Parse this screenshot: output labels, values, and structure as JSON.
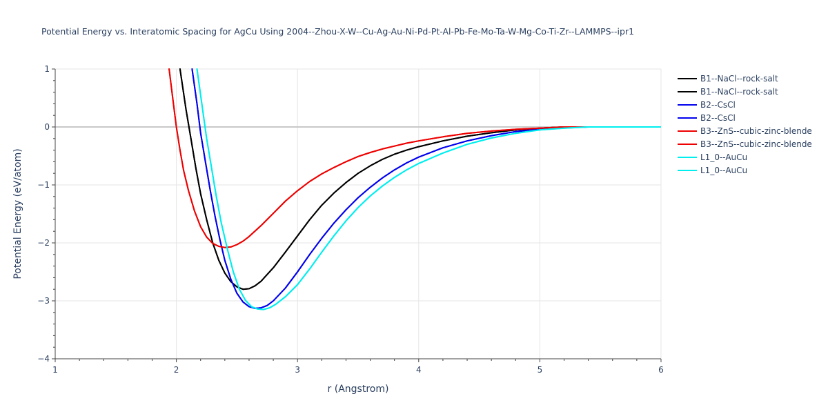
{
  "chart_data": {
    "type": "line",
    "title": "Potential Energy vs. Interatomic Spacing for AgCu Using 2004--Zhou-X-W--Cu-Ag-Au-Ni-Pd-Pt-Al-Pb-Fe-Mo-Ta-W-Mg-Co-Ti-Zr--LAMMPS--ipr1",
    "xlabel": "r (Angstrom)",
    "ylabel": "Potential Energy (eV/atom)",
    "xlim": [
      1,
      6
    ],
    "ylim": [
      -4,
      1
    ],
    "xticks": [
      1,
      2,
      3,
      4,
      5,
      6
    ],
    "yticks": [
      1,
      0,
      -1,
      -2,
      -3,
      -4
    ],
    "xtick_labels": [
      "1",
      "2",
      "3",
      "4",
      "5",
      "6"
    ],
    "ytick_labels": [
      "1",
      "0",
      "−1",
      "−2",
      "−3",
      "−4"
    ],
    "grid": true,
    "legend_position": "top-right",
    "series": [
      {
        "name": "B1--NaCl--rock-salt",
        "color": "#000000",
        "x": [
          2.03,
          2.08,
          2.12,
          2.16,
          2.2,
          2.25,
          2.3,
          2.35,
          2.4,
          2.45,
          2.5,
          2.55,
          2.6,
          2.65,
          2.7,
          2.8,
          2.9,
          3.0,
          3.1,
          3.2,
          3.3,
          3.4,
          3.5,
          3.6,
          3.7,
          3.8,
          3.9,
          4.0,
          4.2,
          4.4,
          4.6,
          4.8,
          5.0,
          5.2,
          5.4,
          5.6,
          6.0
        ],
        "y": [
          1.0,
          0.3,
          -0.2,
          -0.7,
          -1.15,
          -1.6,
          -2.0,
          -2.3,
          -2.52,
          -2.67,
          -2.76,
          -2.8,
          -2.79,
          -2.74,
          -2.66,
          -2.43,
          -2.16,
          -1.88,
          -1.6,
          -1.35,
          -1.14,
          -0.96,
          -0.8,
          -0.67,
          -0.56,
          -0.47,
          -0.4,
          -0.34,
          -0.24,
          -0.16,
          -0.1,
          -0.05,
          -0.02,
          0.0,
          0.0,
          0.0,
          0.0
        ]
      },
      {
        "name": "B1--NaCl--rock-salt",
        "color": "#000000",
        "x": [
          2.03,
          2.08,
          2.12,
          2.16,
          2.2,
          2.25,
          2.3,
          2.35,
          2.4,
          2.45,
          2.5,
          2.55,
          2.6,
          2.65,
          2.7,
          2.8,
          2.9,
          3.0,
          3.1,
          3.2,
          3.3,
          3.4,
          3.5,
          3.6,
          3.7,
          3.8,
          3.9,
          4.0,
          4.2,
          4.4,
          4.6,
          4.8,
          5.0,
          5.2,
          5.4,
          5.6,
          6.0
        ],
        "y": [
          1.0,
          0.3,
          -0.2,
          -0.7,
          -1.15,
          -1.6,
          -2.0,
          -2.3,
          -2.52,
          -2.67,
          -2.76,
          -2.8,
          -2.79,
          -2.74,
          -2.66,
          -2.43,
          -2.16,
          -1.88,
          -1.6,
          -1.35,
          -1.14,
          -0.96,
          -0.8,
          -0.67,
          -0.56,
          -0.47,
          -0.4,
          -0.34,
          -0.24,
          -0.16,
          -0.1,
          -0.05,
          -0.02,
          0.0,
          0.0,
          0.0,
          0.0
        ]
      },
      {
        "name": "B2--CsCl",
        "color": "#0000ee",
        "x": [
          2.13,
          2.17,
          2.2,
          2.24,
          2.28,
          2.32,
          2.36,
          2.4,
          2.45,
          2.5,
          2.55,
          2.6,
          2.65,
          2.7,
          2.75,
          2.8,
          2.9,
          3.0,
          3.1,
          3.2,
          3.3,
          3.4,
          3.5,
          3.6,
          3.7,
          3.8,
          3.9,
          4.0,
          4.2,
          4.4,
          4.6,
          4.8,
          5.0,
          5.2,
          5.4,
          5.6,
          6.0
        ],
        "y": [
          1.0,
          0.4,
          -0.1,
          -0.6,
          -1.1,
          -1.55,
          -1.95,
          -2.3,
          -2.63,
          -2.87,
          -3.02,
          -3.1,
          -3.13,
          -3.12,
          -3.08,
          -3.0,
          -2.78,
          -2.5,
          -2.2,
          -1.92,
          -1.66,
          -1.43,
          -1.22,
          -1.04,
          -0.88,
          -0.74,
          -0.62,
          -0.52,
          -0.36,
          -0.24,
          -0.15,
          -0.08,
          -0.04,
          -0.01,
          0.0,
          0.0,
          0.0
        ]
      },
      {
        "name": "B2--CsCl",
        "color": "#0000ee",
        "x": [
          2.13,
          2.17,
          2.2,
          2.24,
          2.28,
          2.32,
          2.36,
          2.4,
          2.45,
          2.5,
          2.55,
          2.6,
          2.65,
          2.7,
          2.75,
          2.8,
          2.9,
          3.0,
          3.1,
          3.2,
          3.3,
          3.4,
          3.5,
          3.6,
          3.7,
          3.8,
          3.9,
          4.0,
          4.2,
          4.4,
          4.6,
          4.8,
          5.0,
          5.2,
          5.4,
          5.6,
          6.0
        ],
        "y": [
          1.0,
          0.4,
          -0.1,
          -0.6,
          -1.1,
          -1.55,
          -1.95,
          -2.3,
          -2.63,
          -2.87,
          -3.02,
          -3.1,
          -3.13,
          -3.12,
          -3.08,
          -3.0,
          -2.78,
          -2.5,
          -2.2,
          -1.92,
          -1.66,
          -1.43,
          -1.22,
          -1.04,
          -0.88,
          -0.74,
          -0.62,
          -0.52,
          -0.36,
          -0.24,
          -0.15,
          -0.08,
          -0.04,
          -0.01,
          0.0,
          0.0,
          0.0
        ]
      },
      {
        "name": "B3--ZnS--cubic-zinc-blende",
        "color": "#ee0000",
        "x": [
          1.94,
          1.97,
          2.0,
          2.03,
          2.06,
          2.1,
          2.15,
          2.2,
          2.25,
          2.3,
          2.35,
          2.4,
          2.45,
          2.5,
          2.55,
          2.6,
          2.7,
          2.8,
          2.9,
          3.0,
          3.1,
          3.2,
          3.3,
          3.4,
          3.5,
          3.6,
          3.7,
          3.8,
          3.9,
          4.0,
          4.2,
          4.4,
          4.6,
          4.8,
          5.0,
          5.2,
          5.4,
          6.0
        ],
        "y": [
          1.0,
          0.5,
          0.0,
          -0.4,
          -0.75,
          -1.1,
          -1.45,
          -1.72,
          -1.9,
          -2.01,
          -2.06,
          -2.08,
          -2.07,
          -2.03,
          -1.97,
          -1.89,
          -1.7,
          -1.49,
          -1.28,
          -1.1,
          -0.94,
          -0.81,
          -0.7,
          -0.6,
          -0.51,
          -0.44,
          -0.38,
          -0.33,
          -0.28,
          -0.24,
          -0.17,
          -0.11,
          -0.07,
          -0.04,
          -0.02,
          0.0,
          0.0,
          0.0
        ]
      },
      {
        "name": "B3--ZnS--cubic-zinc-blende",
        "color": "#ee0000",
        "x": [
          1.94,
          1.97,
          2.0,
          2.03,
          2.06,
          2.1,
          2.15,
          2.2,
          2.25,
          2.3,
          2.35,
          2.4,
          2.45,
          2.5,
          2.55,
          2.6,
          2.7,
          2.8,
          2.9,
          3.0,
          3.1,
          3.2,
          3.3,
          3.4,
          3.5,
          3.6,
          3.7,
          3.8,
          3.9,
          4.0,
          4.2,
          4.4,
          4.6,
          4.8,
          5.0,
          5.2,
          5.4,
          6.0
        ],
        "y": [
          1.0,
          0.5,
          0.0,
          -0.4,
          -0.75,
          -1.1,
          -1.45,
          -1.72,
          -1.9,
          -2.01,
          -2.06,
          -2.08,
          -2.07,
          -2.03,
          -1.97,
          -1.89,
          -1.7,
          -1.49,
          -1.28,
          -1.1,
          -0.94,
          -0.81,
          -0.7,
          -0.6,
          -0.51,
          -0.44,
          -0.38,
          -0.33,
          -0.28,
          -0.24,
          -0.17,
          -0.11,
          -0.07,
          -0.04,
          -0.02,
          0.0,
          0.0,
          0.0
        ]
      },
      {
        "name": "L1_0--AuCu",
        "color": "#00eeee",
        "x": [
          2.17,
          2.21,
          2.25,
          2.29,
          2.33,
          2.37,
          2.42,
          2.47,
          2.52,
          2.57,
          2.62,
          2.67,
          2.72,
          2.77,
          2.82,
          2.9,
          3.0,
          3.1,
          3.2,
          3.3,
          3.4,
          3.5,
          3.6,
          3.7,
          3.8,
          3.9,
          4.0,
          4.2,
          4.4,
          4.6,
          4.8,
          5.0,
          5.2,
          5.4,
          5.6,
          6.0
        ],
        "y": [
          1.0,
          0.4,
          -0.2,
          -0.7,
          -1.2,
          -1.65,
          -2.1,
          -2.5,
          -2.8,
          -2.99,
          -3.1,
          -3.14,
          -3.15,
          -3.12,
          -3.06,
          -2.93,
          -2.72,
          -2.45,
          -2.16,
          -1.88,
          -1.62,
          -1.39,
          -1.19,
          -1.02,
          -0.87,
          -0.74,
          -0.63,
          -0.45,
          -0.3,
          -0.19,
          -0.11,
          -0.05,
          -0.02,
          0.0,
          0.0,
          0.0
        ]
      },
      {
        "name": "L1_0--AuCu",
        "color": "#00eeee",
        "x": [
          2.17,
          2.21,
          2.25,
          2.29,
          2.33,
          2.37,
          2.42,
          2.47,
          2.52,
          2.57,
          2.62,
          2.67,
          2.72,
          2.77,
          2.82,
          2.9,
          3.0,
          3.1,
          3.2,
          3.3,
          3.4,
          3.5,
          3.6,
          3.7,
          3.8,
          3.9,
          4.0,
          4.2,
          4.4,
          4.6,
          4.8,
          5.0,
          5.2,
          5.4,
          5.6,
          6.0
        ],
        "y": [
          1.0,
          0.4,
          -0.2,
          -0.7,
          -1.2,
          -1.65,
          -2.1,
          -2.5,
          -2.8,
          -2.99,
          -3.1,
          -3.14,
          -3.15,
          -3.12,
          -3.06,
          -2.93,
          -2.72,
          -2.45,
          -2.16,
          -1.88,
          -1.62,
          -1.39,
          -1.19,
          -1.02,
          -0.87,
          -0.74,
          -0.63,
          -0.45,
          -0.3,
          -0.19,
          -0.11,
          -0.05,
          -0.02,
          0.0,
          0.0,
          0.0
        ]
      }
    ]
  }
}
